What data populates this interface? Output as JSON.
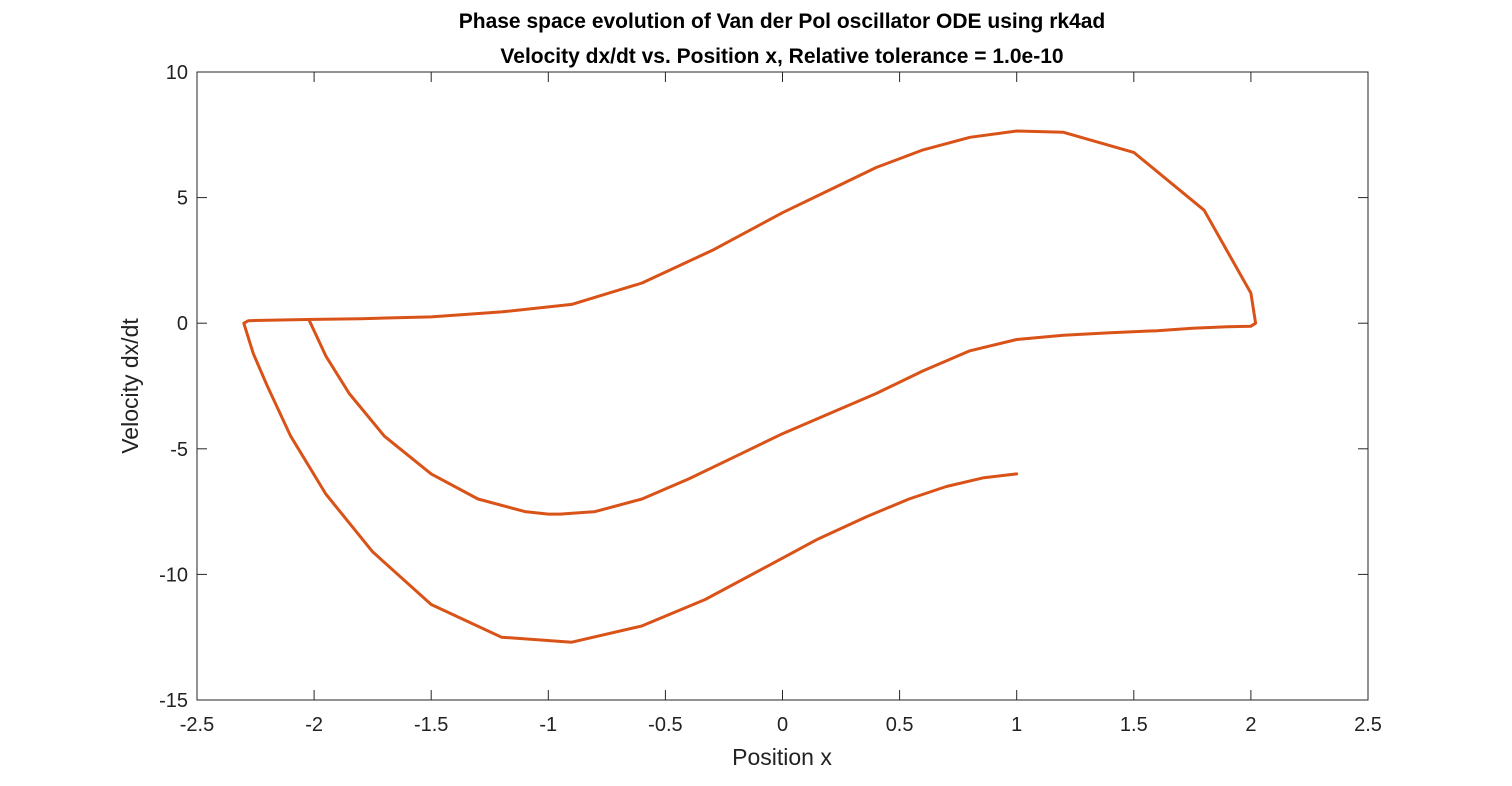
{
  "chart_data": {
    "type": "line",
    "title": "Phase space evolution of Van der Pol oscillator ODE using rk4ad",
    "subtitle": "Velocity dx/dt vs. Position x, Relative tolerance = 1.0e-10",
    "xlabel": "Position x",
    "ylabel": "Velocity dx/dt",
    "xlim": [
      -2.5,
      2.5
    ],
    "ylim": [
      -15,
      10
    ],
    "xticks": [
      -2.5,
      -2,
      -1.5,
      -1,
      -0.5,
      0,
      0.5,
      1,
      1.5,
      2,
      2.5
    ],
    "xtick_labels": [
      "-2.5",
      "-2",
      "-1.5",
      "-1",
      "-0.5",
      "0",
      "0.5",
      "1",
      "1.5",
      "2",
      "2.5"
    ],
    "yticks": [
      -15,
      -10,
      -5,
      0,
      5,
      10
    ],
    "ytick_labels": [
      "-15",
      "-10",
      "-5",
      "0",
      "5",
      "10"
    ],
    "grid": false,
    "legend": "none",
    "series": [
      {
        "color": "#d95319",
        "x": [
          1.0,
          0.86,
          0.7,
          0.54,
          0.36,
          0.15,
          -0.05,
          -0.33,
          -0.6,
          -0.9,
          -1.2,
          -1.5,
          -1.75,
          -1.95,
          -2.1,
          -2.2,
          -2.26,
          -2.3,
          -2.28,
          -2.2,
          -2.0,
          -1.8,
          -1.5,
          -1.2,
          -0.9,
          -0.6,
          -0.3,
          0.0,
          0.2,
          0.4,
          0.6,
          0.8,
          1.0,
          1.2,
          1.5,
          1.8,
          2.0,
          2.02,
          2.0,
          1.9,
          1.75,
          1.6,
          1.4,
          1.2,
          1.0,
          0.8,
          0.6,
          0.4,
          0.2,
          0.0,
          -0.2,
          -0.4,
          -0.6,
          -0.8,
          -0.95,
          -1.0,
          -1.1,
          -1.3,
          -1.5,
          -1.7,
          -1.85,
          -1.95,
          -2.0,
          -2.02
        ],
        "y": [
          -6.0,
          -6.15,
          -6.5,
          -7.0,
          -7.7,
          -8.6,
          -9.6,
          -11.0,
          -12.05,
          -12.7,
          -12.5,
          -11.2,
          -9.1,
          -6.8,
          -4.5,
          -2.5,
          -1.2,
          0.0,
          0.1,
          0.12,
          0.15,
          0.18,
          0.25,
          0.45,
          0.75,
          1.6,
          2.9,
          4.4,
          5.3,
          6.2,
          6.9,
          7.4,
          7.65,
          7.6,
          6.8,
          4.5,
          1.2,
          0.0,
          -0.12,
          -0.14,
          -0.2,
          -0.3,
          -0.38,
          -0.48,
          -0.65,
          -1.1,
          -1.9,
          -2.8,
          -3.6,
          -4.4,
          -5.3,
          -6.2,
          -7.0,
          -7.5,
          -7.6,
          -7.6,
          -7.5,
          -7.0,
          -6.0,
          -4.5,
          -2.8,
          -1.3,
          -0.3,
          0.1
        ]
      }
    ]
  }
}
